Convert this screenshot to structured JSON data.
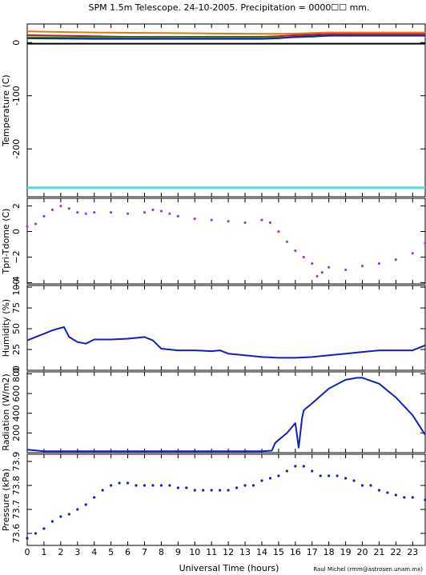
{
  "title": "SPM 1.5m Telescope. 24-10-2005. Precipitation = 0000☐☐ mm.",
  "credit": "Raul Michel (rmm@astrosen.unam.mx)",
  "xlabel": "Universal Time (hours)",
  "x_ticks": [
    0,
    1,
    2,
    3,
    4,
    5,
    6,
    7,
    8,
    9,
    10,
    11,
    12,
    13,
    14,
    15,
    16,
    17,
    18,
    19,
    20,
    21,
    22,
    23
  ],
  "xlim": [
    0,
    23.75
  ],
  "chart_data": [
    {
      "type": "line",
      "ylabel": "Temperature (C)",
      "ylim": [
        -290,
        35
      ],
      "y_ticks": [
        0,
        -100,
        -200
      ],
      "series": [
        {
          "color": "#e07a10",
          "x": [
            0,
            2,
            4,
            6,
            8,
            10,
            12,
            14,
            15,
            16,
            17,
            18,
            20,
            22,
            23.75
          ],
          "y": [
            21,
            20,
            19,
            18.5,
            18,
            17.5,
            17,
            16.5,
            16.5,
            17,
            18,
            19,
            19,
            19,
            19
          ]
        },
        {
          "color": "#c01818",
          "x": [
            0,
            2,
            4,
            6,
            8,
            10,
            12,
            14,
            15,
            16,
            17,
            18,
            20,
            22,
            23.75
          ],
          "y": [
            14,
            13,
            12,
            11,
            11,
            11,
            11,
            11,
            12,
            14,
            15,
            16,
            16,
            16,
            16
          ]
        },
        {
          "color": "#20a020",
          "x": [
            0,
            2,
            4,
            6,
            8,
            10,
            12,
            14,
            15,
            16,
            17,
            18,
            20,
            22,
            23.75
          ],
          "y": [
            10,
            9.5,
            9.5,
            9,
            9,
            9,
            9,
            9,
            9,
            10,
            11,
            13,
            14,
            14,
            14
          ]
        },
        {
          "color": "#1020c0",
          "x": [
            0,
            2,
            4,
            6,
            8,
            10,
            12,
            14,
            15,
            16,
            17,
            18,
            20,
            22,
            23.75
          ],
          "y": [
            8,
            7.5,
            7,
            7,
            7,
            7,
            7,
            7,
            8,
            11,
            12,
            13,
            13,
            13,
            13
          ]
        },
        {
          "color": "#000000",
          "x": [
            0,
            23.75
          ],
          "y": [
            -2,
            -2
          ]
        },
        {
          "color": "#40e0e8",
          "x": [
            0,
            23.75
          ],
          "y": [
            -273,
            -273
          ]
        }
      ]
    },
    {
      "type": "scatter",
      "ylabel": "Tpri-Tdome (C)",
      "ylim": [
        -4.1,
        2.6
      ],
      "y_ticks": [
        2,
        0,
        -2,
        -4
      ],
      "y_tick_labels": [
        "2",
        "0",
        "−2",
        "−4"
      ],
      "series": [
        {
          "color": "#9a40d8",
          "x": [
            0,
            0.5,
            1,
            1.5,
            2,
            2.5,
            3,
            3.5,
            4,
            5,
            6,
            7,
            7.5,
            8,
            8.5,
            9,
            10,
            11,
            12,
            13,
            14,
            14.5,
            15,
            15.5,
            16,
            16.5,
            17,
            17.3,
            17.6,
            18,
            19,
            20,
            21,
            22,
            23,
            23.75
          ],
          "y": [
            0.4,
            0.6,
            1.2,
            1.7,
            2.0,
            1.8,
            1.5,
            1.4,
            1.5,
            1.5,
            1.4,
            1.5,
            1.7,
            1.6,
            1.4,
            1.2,
            1.0,
            0.9,
            0.8,
            0.7,
            0.9,
            0.7,
            0.0,
            -0.8,
            -1.5,
            -2.0,
            -2.5,
            -3.5,
            -3.2,
            -2.8,
            -3.0,
            -2.7,
            -2.5,
            -2.2,
            -1.7,
            -0.9
          ]
        }
      ]
    },
    {
      "type": "line",
      "ylabel": "Humidity (%)",
      "ylim": [
        0,
        102
      ],
      "y_ticks": [
        0,
        25,
        50,
        75,
        100
      ],
      "series": [
        {
          "color": "#1020c0",
          "x": [
            0,
            0.5,
            1,
            1.5,
            2,
            2.2,
            2.5,
            3,
            3.5,
            4,
            5,
            6,
            6.5,
            7,
            7.5,
            8,
            9,
            10,
            11,
            11.5,
            12,
            13,
            14,
            15,
            16,
            17,
            18,
            19,
            20,
            21,
            22,
            23,
            23.75
          ],
          "y": [
            36,
            40,
            44,
            48,
            51,
            52,
            40,
            34,
            32,
            37,
            37,
            38,
            39,
            40,
            36,
            26,
            24,
            24,
            23,
            24,
            20,
            18,
            16,
            15,
            15,
            16,
            18,
            20,
            22,
            24,
            24,
            24,
            30
          ]
        }
      ]
    },
    {
      "type": "line",
      "ylabel": "Radiation (W/m2)",
      "ylim": [
        0,
        820
      ],
      "y_ticks": [
        0,
        200,
        400,
        600,
        800
      ],
      "y_tick_labels": [
        "",
        "200",
        "400",
        "600",
        "800"
      ],
      "series": [
        {
          "color": "#1020c0",
          "x": [
            0,
            1,
            2,
            3,
            4,
            5,
            6,
            7,
            8,
            9,
            10,
            11,
            12,
            13,
            14,
            14.6,
            14.8,
            15.5,
            16,
            16.2,
            16.4,
            16.5,
            17,
            18,
            19,
            19.7,
            20,
            21,
            22,
            23,
            23.75
          ],
          "y": [
            30,
            15,
            15,
            15,
            15,
            15,
            15,
            15,
            15,
            15,
            15,
            15,
            15,
            15,
            15,
            20,
            100,
            200,
            300,
            50,
            350,
            430,
            500,
            650,
            740,
            760,
            760,
            700,
            560,
            380,
            180
          ]
        }
      ]
    },
    {
      "type": "scatter",
      "ylabel": "Pressure (kPa)",
      "ylim": [
        73.55,
        73.93
      ],
      "y_ticks": [
        73.6,
        73.7,
        73.8,
        73.9
      ],
      "series": [
        {
          "color": "#1020c0",
          "x": [
            0,
            0.5,
            1,
            1.5,
            2,
            2.5,
            3,
            3.5,
            4,
            4.5,
            5,
            5.5,
            6,
            6.5,
            7,
            7.5,
            8,
            8.5,
            9,
            9.5,
            10,
            10.5,
            11,
            11.5,
            12,
            12.5,
            13,
            13.5,
            14,
            14.5,
            15,
            15.5,
            16,
            16.5,
            17,
            17.5,
            18,
            18.5,
            19,
            19.5,
            20,
            20.5,
            21,
            21.5,
            22,
            22.5,
            23,
            23.75
          ],
          "y": [
            73.58,
            73.6,
            73.62,
            73.65,
            73.67,
            73.68,
            73.7,
            73.72,
            73.75,
            73.78,
            73.8,
            73.81,
            73.81,
            73.8,
            73.8,
            73.8,
            73.8,
            73.8,
            73.79,
            73.79,
            73.78,
            73.78,
            73.78,
            73.78,
            73.78,
            73.79,
            73.8,
            73.8,
            73.82,
            73.83,
            73.84,
            73.86,
            73.88,
            73.88,
            73.86,
            73.84,
            73.84,
            73.84,
            73.83,
            73.82,
            73.8,
            73.8,
            73.78,
            73.77,
            73.76,
            73.75,
            73.75,
            73.74
          ]
        }
      ]
    }
  ]
}
